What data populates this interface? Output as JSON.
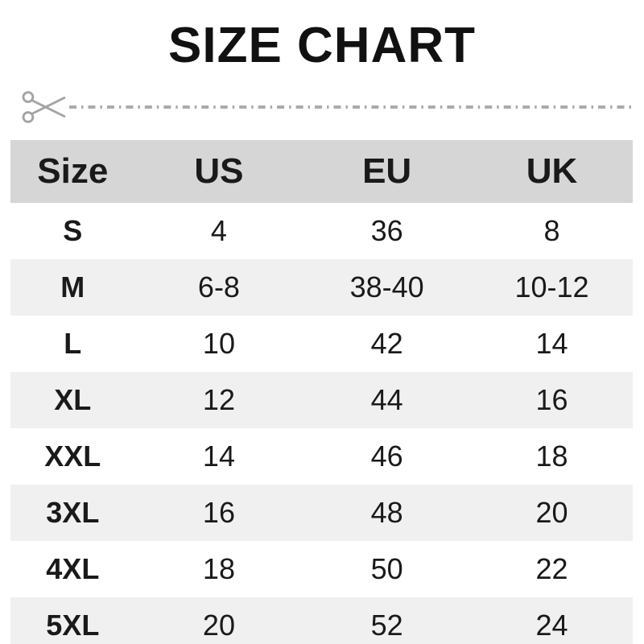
{
  "title": "SIZE CHART",
  "cutline": {
    "icon": "scissors-icon",
    "style": "dash-dot",
    "color": "#ababab"
  },
  "colors": {
    "header_bg": "#d6d6d6",
    "row_alt_bg": "#f0f0f0",
    "row_bg": "#ffffff",
    "text": "#1a1a1a",
    "title_text": "#111111",
    "cutline_gray": "#ababab"
  },
  "chart_data": {
    "type": "table",
    "title": "SIZE CHART",
    "columns": [
      "Size",
      "US",
      "EU",
      "UK"
    ],
    "rows": [
      [
        "S",
        "4",
        "36",
        "8"
      ],
      [
        "M",
        "6-8",
        "38-40",
        "10-12"
      ],
      [
        "L",
        "10",
        "42",
        "14"
      ],
      [
        "XL",
        "12",
        "44",
        "16"
      ],
      [
        "XXL",
        "14",
        "46",
        "18"
      ],
      [
        "3XL",
        "16",
        "48",
        "20"
      ],
      [
        "4XL",
        "18",
        "50",
        "22"
      ],
      [
        "5XL",
        "20",
        "52",
        "24"
      ]
    ]
  },
  "table": {
    "headers": [
      "Size",
      "US",
      "EU",
      "UK"
    ],
    "rows": [
      [
        "S",
        "4",
        "36",
        "8"
      ],
      [
        "M",
        "6-8",
        "38-40",
        "10-12"
      ],
      [
        "L",
        "10",
        "42",
        "14"
      ],
      [
        "XL",
        "12",
        "44",
        "16"
      ],
      [
        "XXL",
        "14",
        "46",
        "18"
      ],
      [
        "3XL",
        "16",
        "48",
        "20"
      ],
      [
        "4XL",
        "18",
        "50",
        "22"
      ],
      [
        "5XL",
        "20",
        "52",
        "24"
      ]
    ]
  }
}
